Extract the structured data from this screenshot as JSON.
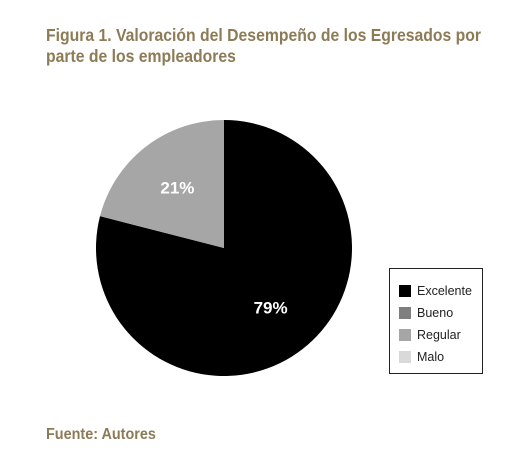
{
  "title_lines": [
    "Figura 1. Valoración del Desempeño de los Egresados por",
    "parte de los empleadores"
  ],
  "source": "Fuente: Autores",
  "colors": {
    "title": "#8c7b56"
  },
  "chart_data": {
    "type": "pie",
    "title": "Figura 1. Valoración del Desempeño de los Egresados por parte de los empleadores",
    "legend_position": "right",
    "series": [
      {
        "name": "Excelente",
        "value": 79,
        "label": "79%",
        "color": "#000000",
        "label_color": "#ffffff"
      },
      {
        "name": "Bueno",
        "value": 0,
        "label": "",
        "color": "#7f7f7f",
        "label_color": "#ffffff"
      },
      {
        "name": "Regular",
        "value": 21,
        "label": "21%",
        "color": "#a6a6a6",
        "label_color": "#ffffff"
      },
      {
        "name": "Malo",
        "value": 0,
        "label": "",
        "color": "#d9d9d9",
        "label_color": "#ffffff"
      }
    ]
  }
}
